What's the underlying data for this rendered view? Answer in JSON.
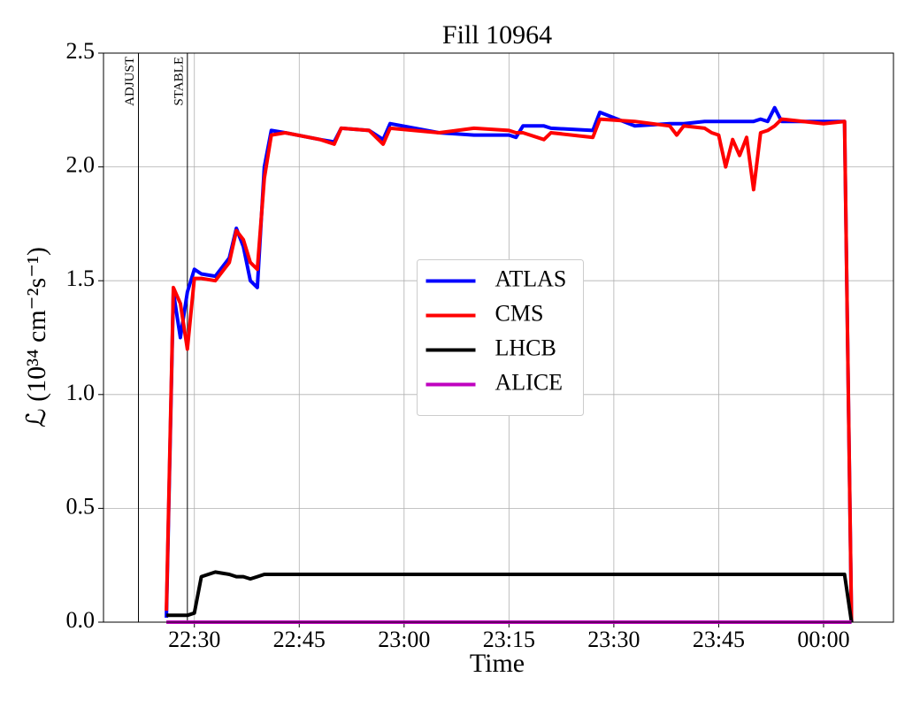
{
  "chart_data": {
    "type": "line",
    "title": "Fill 10964",
    "x_label": "Time",
    "y_label": "ℒ (10³⁴ cm⁻²s⁻¹)",
    "xlim": [
      "22:17",
      "00:10"
    ],
    "xticks": [
      "22:30",
      "22:45",
      "23:00",
      "23:15",
      "23:30",
      "23:45",
      "00:00"
    ],
    "ylim": [
      0,
      2.5
    ],
    "yticks": [
      {
        "value": 0,
        "label": "0.0"
      },
      {
        "value": 0.5,
        "label": "0.5"
      },
      {
        "value": 1,
        "label": "1.0"
      },
      {
        "value": 1.5,
        "label": "1.5"
      },
      {
        "value": 2,
        "label": "2.0"
      },
      {
        "value": 2.5,
        "label": "2.5"
      }
    ],
    "grid": true,
    "legend": "center",
    "annotations": [
      {
        "text": "ADJUST",
        "x": "22:22"
      },
      {
        "text": "STABLE",
        "x": "22:29"
      }
    ],
    "x": [
      "22:26",
      "22:27",
      "22:28",
      "22:29",
      "22:30",
      "22:31",
      "22:33",
      "22:35",
      "22:36",
      "22:37",
      "22:38",
      "22:39",
      "22:40",
      "22:41",
      "22:43",
      "22:48",
      "22:50",
      "22:51",
      "22:55",
      "22:57",
      "22:58",
      "23:05",
      "23:10",
      "23:15",
      "23:16",
      "23:17",
      "23:20",
      "23:21",
      "23:27",
      "23:28",
      "23:33",
      "23:38",
      "23:39",
      "23:40",
      "23:43",
      "23:44",
      "23:45",
      "23:46",
      "23:47",
      "23:48",
      "23:49",
      "23:50",
      "23:51",
      "23:52",
      "23:53",
      "23:54",
      "00:00",
      "00:03",
      "00:04"
    ],
    "series": [
      {
        "name": "ATLAS",
        "color": "#0000ff",
        "values": [
          0.02,
          1.45,
          1.25,
          1.45,
          1.55,
          1.53,
          1.52,
          1.6,
          1.73,
          1.65,
          1.5,
          1.47,
          2.0,
          2.16,
          2.15,
          2.12,
          2.11,
          2.17,
          2.16,
          2.12,
          2.19,
          2.15,
          2.14,
          2.14,
          2.13,
          2.18,
          2.18,
          2.17,
          2.16,
          2.24,
          2.18,
          2.19,
          2.19,
          2.19,
          2.2,
          2.2,
          2.2,
          2.2,
          2.2,
          2.2,
          2.2,
          2.2,
          2.21,
          2.2,
          2.26,
          2.2,
          2.2,
          2.2,
          0.0
        ]
      },
      {
        "name": "CMS",
        "color": "#ff0000",
        "values": [
          0.05,
          1.47,
          1.4,
          1.2,
          1.51,
          1.51,
          1.5,
          1.58,
          1.72,
          1.68,
          1.58,
          1.55,
          1.95,
          2.14,
          2.15,
          2.12,
          2.1,
          2.17,
          2.16,
          2.1,
          2.17,
          2.15,
          2.17,
          2.16,
          2.15,
          2.15,
          2.12,
          2.15,
          2.13,
          2.21,
          2.2,
          2.18,
          2.14,
          2.18,
          2.17,
          2.15,
          2.14,
          2.0,
          2.12,
          2.05,
          2.13,
          1.9,
          2.15,
          2.16,
          2.18,
          2.21,
          2.19,
          2.2,
          0.0
        ]
      },
      {
        "name": "LHCB",
        "color": "#000000",
        "values": [
          0.03,
          0.03,
          0.03,
          0.03,
          0.04,
          0.2,
          0.22,
          0.21,
          0.2,
          0.2,
          0.19,
          0.2,
          0.21,
          0.21,
          0.21,
          0.21,
          0.21,
          0.21,
          0.21,
          0.21,
          0.21,
          0.21,
          0.21,
          0.21,
          0.21,
          0.21,
          0.21,
          0.21,
          0.21,
          0.21,
          0.21,
          0.21,
          0.21,
          0.21,
          0.21,
          0.21,
          0.21,
          0.21,
          0.21,
          0.21,
          0.21,
          0.21,
          0.21,
          0.21,
          0.21,
          0.21,
          0.21,
          0.21,
          0.0
        ]
      },
      {
        "name": "ALICE",
        "color": "#bf00bf",
        "values": [
          0,
          0,
          0,
          0,
          0,
          0,
          0,
          0,
          0,
          0,
          0,
          0,
          0,
          0,
          0,
          0,
          0,
          0,
          0,
          0,
          0,
          0,
          0,
          0,
          0,
          0,
          0,
          0,
          0,
          0,
          0,
          0,
          0,
          0,
          0,
          0,
          0,
          0,
          0,
          0,
          0,
          0,
          0,
          0,
          0,
          0,
          0,
          0,
          0
        ]
      }
    ]
  }
}
